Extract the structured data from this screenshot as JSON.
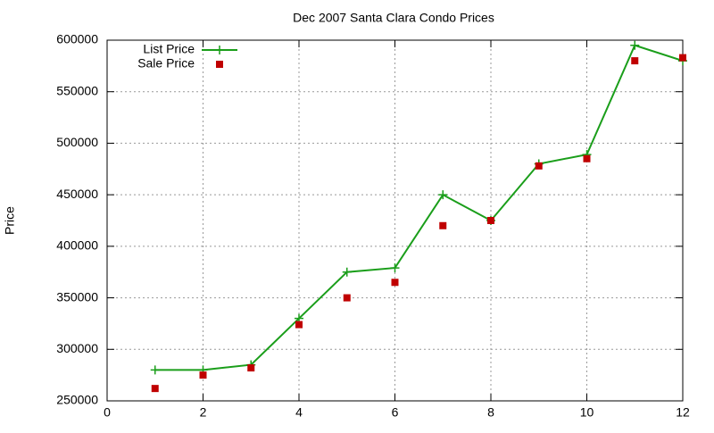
{
  "chart_data": {
    "type": "line",
    "title": "Dec 2007 Santa Clara Condo Prices",
    "y_label": "Price",
    "x": [
      1,
      2,
      3,
      4,
      5,
      6,
      7,
      8,
      9,
      10,
      11,
      12
    ],
    "series": [
      {
        "name": "List Price",
        "color": "#1a9e1a",
        "marker": "plus",
        "line": true,
        "values": [
          280000,
          280000,
          285000,
          330000,
          375000,
          379000,
          450000,
          425000,
          480000,
          489000,
          595000,
          580000
        ]
      },
      {
        "name": "Sale Price",
        "color": "#c00000",
        "marker": "square",
        "line": false,
        "values": [
          262000,
          275000,
          282000,
          324000,
          350000,
          365000,
          420000,
          425000,
          478000,
          485000,
          580000,
          583000
        ]
      }
    ],
    "xlim": [
      0,
      12
    ],
    "xticks": [
      0,
      2,
      4,
      6,
      8,
      10,
      12
    ],
    "ylim": [
      250000,
      600000
    ],
    "yticks": [
      250000,
      300000,
      350000,
      400000,
      450000,
      500000,
      550000,
      600000
    ],
    "grid": true,
    "legend": "top-left"
  }
}
